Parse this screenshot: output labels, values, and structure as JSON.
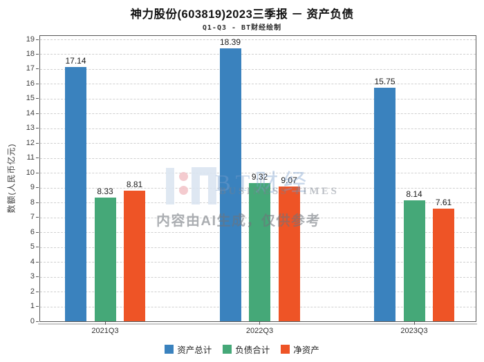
{
  "chart_data": {
    "type": "bar",
    "title": "神力股份(603819)2023三季报 － 资产负债",
    "subtitle": "Q1-Q3 - BT财经绘制",
    "categories": [
      "2021Q3",
      "2022Q3",
      "2023Q3"
    ],
    "series": [
      {
        "name": "资产总计",
        "color": "#3a82be",
        "values": [
          17.14,
          18.39,
          15.75
        ]
      },
      {
        "name": "负债合计",
        "color": "#45a878",
        "values": [
          8.33,
          9.32,
          8.14
        ]
      },
      {
        "name": "净资产",
        "color": "#ee5426",
        "values": [
          8.81,
          9.07,
          7.61
        ]
      }
    ],
    "ylabel": "数额(人民币亿元)",
    "ylim": [
      0,
      19.3
    ],
    "ytick_min": 0,
    "ytick_max": 19,
    "ytick_step": 1,
    "grid": true,
    "grid_style": "dashed",
    "legend_position": "bottom",
    "value_labels": true
  },
  "watermark": {
    "logo_name": "bt-finance-logo",
    "brand": "BT财经",
    "brand_sub": "BUSINESS TIMES",
    "disclaimer": "内容由AI生成，仅供参考",
    "logo_bar_color": "#dbe5f1",
    "logo_dot_color": "#f3c6ca"
  }
}
